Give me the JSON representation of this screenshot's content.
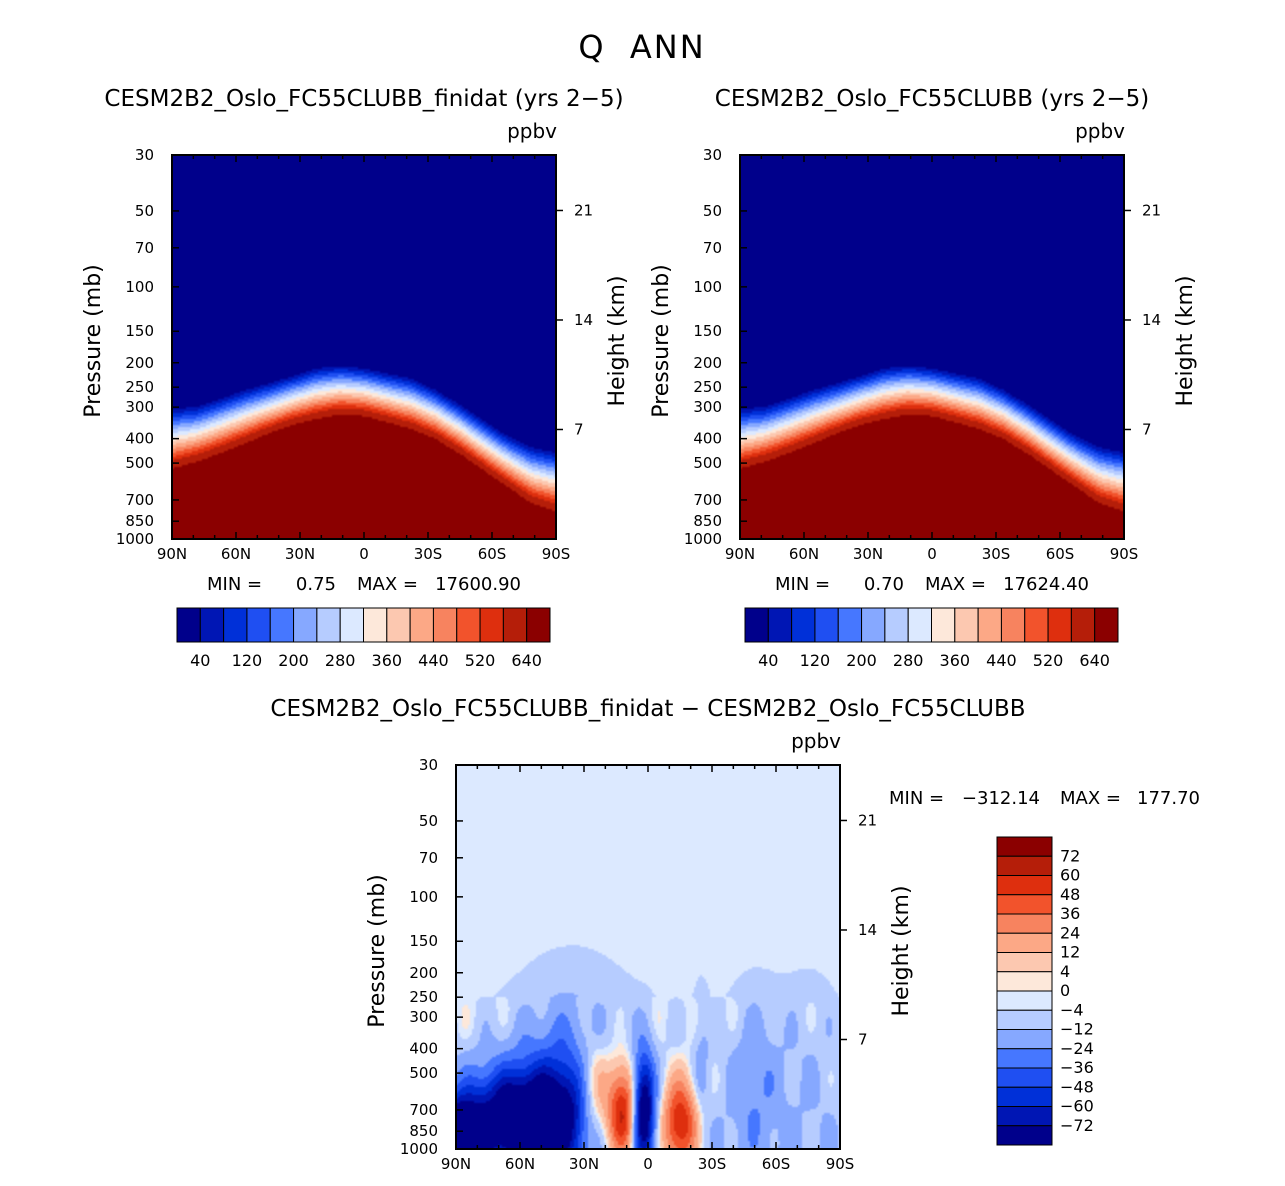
{
  "figure_title": "Q  ANN",
  "colors": {
    "abs_palette": [
      "#00008b",
      "#0016b4",
      "#0030d8",
      "#1f4ff2",
      "#4677ff",
      "#86a8ff",
      "#b6ccff",
      "#dce9ff",
      "#fde8da",
      "#fcc8b0",
      "#fca886",
      "#f7835f",
      "#f2532c",
      "#de2f0e",
      "#b51e09",
      "#8b0000"
    ],
    "diff_palette": [
      "#00008b",
      "#0016b4",
      "#0030d8",
      "#1f4ff2",
      "#4677ff",
      "#86a8ff",
      "#b6ccff",
      "#dce9ff",
      "#fde8da",
      "#fcc8b0",
      "#fca886",
      "#f7835f",
      "#f2532c",
      "#de2f0e",
      "#b51e09",
      "#8b0000"
    ]
  },
  "chart_data": [
    {
      "type": "heatmap",
      "title": "CESM2B2_Oslo_FC55CLUBB_finidat (yrs 2−5)",
      "units": "ppbv",
      "ylabel": "Pressure (mb)",
      "y2label": "Height (km)",
      "x_ticks": [
        "90N",
        "60N",
        "30N",
        "0",
        "30S",
        "60S",
        "90S"
      ],
      "y_ticks": [
        "30",
        "50",
        "70",
        "100",
        "150",
        "200",
        "250",
        "300",
        "400",
        "500",
        "700",
        "850",
        "1000"
      ],
      "y2_ticks": [
        "21",
        "14",
        "7"
      ],
      "xlim": [
        90,
        -90
      ],
      "ylim_mb": [
        1000,
        30
      ],
      "min_label": "MIN =",
      "min_value": "0.75",
      "max_label": "MAX =",
      "max_value": "17600.90",
      "colorbar_labels": [
        "40",
        "120",
        "200",
        "280",
        "360",
        "440",
        "520",
        "640"
      ],
      "contour_levels": [
        40,
        80,
        120,
        160,
        200,
        240,
        280,
        320,
        360,
        400,
        440,
        480,
        520,
        560,
        640
      ],
      "transition_top_mb": [
        295,
        290,
        270,
        250,
        235,
        220,
        205,
        200,
        205,
        215,
        225,
        250,
        285,
        330,
        380,
        420,
        440
      ],
      "transition_bottom_mb": [
        555,
        520,
        480,
        440,
        400,
        370,
        350,
        335,
        340,
        360,
        385,
        420,
        480,
        560,
        650,
        760,
        820
      ]
    },
    {
      "type": "heatmap",
      "title": "CESM2B2_Oslo_FC55CLUBB (yrs 2−5)",
      "units": "ppbv",
      "ylabel": "Pressure (mb)",
      "y2label": "Height (km)",
      "x_ticks": [
        "90N",
        "60N",
        "30N",
        "0",
        "30S",
        "60S",
        "90S"
      ],
      "y_ticks": [
        "30",
        "50",
        "70",
        "100",
        "150",
        "200",
        "250",
        "300",
        "400",
        "500",
        "700",
        "850",
        "1000"
      ],
      "y2_ticks": [
        "21",
        "14",
        "7"
      ],
      "xlim": [
        90,
        -90
      ],
      "ylim_mb": [
        1000,
        30
      ],
      "min_label": "MIN =",
      "min_value": "0.70",
      "max_label": "MAX =",
      "max_value": "17624.40",
      "colorbar_labels": [
        "40",
        "120",
        "200",
        "280",
        "360",
        "440",
        "520",
        "640"
      ],
      "contour_levels": [
        40,
        80,
        120,
        160,
        200,
        240,
        280,
        320,
        360,
        400,
        440,
        480,
        520,
        560,
        640
      ],
      "transition_top_mb": [
        295,
        290,
        270,
        250,
        235,
        220,
        205,
        200,
        205,
        215,
        225,
        250,
        285,
        330,
        380,
        420,
        440
      ],
      "transition_bottom_mb": [
        555,
        520,
        480,
        440,
        400,
        370,
        350,
        335,
        340,
        360,
        385,
        420,
        480,
        560,
        650,
        760,
        820
      ]
    },
    {
      "type": "heatmap",
      "title": "CESM2B2_Oslo_FC55CLUBB_finidat − CESM2B2_Oslo_FC55CLUBB",
      "units": "ppbv",
      "ylabel": "Pressure (mb)",
      "y2label": "Height (km)",
      "x_ticks": [
        "90N",
        "60N",
        "30N",
        "0",
        "30S",
        "60S",
        "90S"
      ],
      "y_ticks": [
        "30",
        "50",
        "70",
        "100",
        "150",
        "200",
        "250",
        "300",
        "400",
        "500",
        "700",
        "850",
        "1000"
      ],
      "y2_ticks": [
        "21",
        "14",
        "7"
      ],
      "xlim": [
        90,
        -90
      ],
      "ylim_mb": [
        1000,
        30
      ],
      "min_label": "MIN =",
      "min_value": "−312.14",
      "max_label": "MAX =",
      "max_value": "177.70",
      "colorbar_labels": [
        "72",
        "60",
        "48",
        "36",
        "24",
        "12",
        "4",
        "0",
        "−4",
        "−12",
        "−24",
        "−36",
        "−48",
        "−60",
        "−72"
      ],
      "contour_levels": [
        -72,
        -60,
        -48,
        -36,
        -24,
        -12,
        -4,
        0,
        4,
        12,
        24,
        36,
        48,
        60,
        72
      ],
      "anomalies": [
        {
          "lat": 60,
          "p_mb": 760,
          "value": -90,
          "lat_halfwidth": 30,
          "ln_p_halfwidth": 0.45
        },
        {
          "lat": 35,
          "p_mb": 620,
          "value": -40,
          "lat_halfwidth": 25,
          "ln_p_halfwidth": 0.8
        },
        {
          "lat": 25,
          "p_mb": 650,
          "value": 60,
          "lat_halfwidth": 9,
          "ln_p_halfwidth": 0.55
        },
        {
          "lat": 12,
          "p_mb": 720,
          "value": 85,
          "lat_halfwidth": 7,
          "ln_p_halfwidth": 0.45
        },
        {
          "lat": 2,
          "p_mb": 700,
          "value": -85,
          "lat_halfwidth": 5,
          "ln_p_halfwidth": 0.5
        },
        {
          "lat": -15,
          "p_mb": 800,
          "value": 70,
          "lat_halfwidth": 8,
          "ln_p_halfwidth": 0.4
        },
        {
          "lat": -25,
          "p_mb": 470,
          "value": -12,
          "lat_halfwidth": 4,
          "ln_p_halfwidth": 0.6
        },
        {
          "lat": -50,
          "p_mb": 550,
          "value": -18,
          "lat_halfwidth": 12,
          "ln_p_halfwidth": 0.7
        },
        {
          "lat": -75,
          "p_mb": 450,
          "value": -6,
          "lat_halfwidth": 15,
          "ln_p_halfwidth": 0.8
        },
        {
          "lat": 90,
          "p_mb": 900,
          "value": -100,
          "lat_halfwidth": 10,
          "ln_p_halfwidth": 0.3
        }
      ]
    }
  ]
}
